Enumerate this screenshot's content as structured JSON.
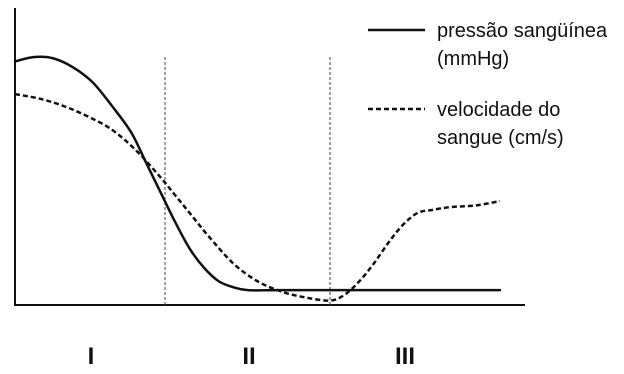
{
  "chart_data": {
    "type": "line",
    "title": "",
    "xlabel": "",
    "ylabel": "",
    "grid": false,
    "legend_position": "top-right",
    "x_range": [
      0,
      100
    ],
    "y_range": [
      0,
      100
    ],
    "regions": [
      {
        "label": "I",
        "from": 0,
        "to": 30.9
      },
      {
        "label": "II",
        "from": 30.9,
        "to": 64.8
      },
      {
        "label": "III",
        "from": 64.8,
        "to": 100
      }
    ],
    "dividers_x": [
      30.9,
      64.8
    ],
    "series": [
      {
        "name_lines": [
          "pressão sangüínea",
          "(mmHg)"
        ],
        "style": "solid",
        "color": "#111111",
        "points": [
          [
            0,
            82.0
          ],
          [
            4,
            83.5
          ],
          [
            8,
            83.0
          ],
          [
            12,
            80.0
          ],
          [
            16,
            75.0
          ],
          [
            20,
            67.0
          ],
          [
            24,
            58.0
          ],
          [
            27,
            48.0
          ],
          [
            30,
            38.0
          ],
          [
            33,
            28.0
          ],
          [
            36,
            19.0
          ],
          [
            39,
            12.5
          ],
          [
            42,
            8.0
          ],
          [
            45,
            6.0
          ],
          [
            48,
            5.0
          ],
          [
            54,
            5.0
          ],
          [
            62,
            5.0
          ],
          [
            70,
            5.0
          ],
          [
            80,
            5.0
          ],
          [
            90,
            5.0
          ],
          [
            100,
            5.0
          ]
        ]
      },
      {
        "name_lines": [
          "velocidade do",
          "sangue (cm/s)"
        ],
        "style": "dashed",
        "color": "#111111",
        "points": [
          [
            0,
            71.0
          ],
          [
            5,
            69.5
          ],
          [
            10,
            67.0
          ],
          [
            15,
            63.5
          ],
          [
            20,
            59.0
          ],
          [
            25,
            52.0
          ],
          [
            30,
            43.0
          ],
          [
            33,
            37.0
          ],
          [
            36,
            31.0
          ],
          [
            40,
            23.0
          ],
          [
            45,
            14.0
          ],
          [
            50,
            8.0
          ],
          [
            55,
            4.5
          ],
          [
            60,
            2.5
          ],
          [
            65,
            1.5
          ],
          [
            68,
            3.5
          ],
          [
            71,
            8.0
          ],
          [
            74,
            14.0
          ],
          [
            77,
            21.0
          ],
          [
            80,
            27.0
          ],
          [
            83,
            31.0
          ],
          [
            86,
            32.0
          ],
          [
            90,
            33.0
          ],
          [
            95,
            33.5
          ],
          [
            100,
            35.0
          ]
        ]
      }
    ]
  },
  "legend": {
    "pressure_line1": "pressão sangüínea",
    "pressure_line2": "(mmHg)",
    "velocity_line1": "velocidade do",
    "velocity_line2": "sangue (cm/s)"
  },
  "regions": {
    "region1": "I",
    "region2": "II",
    "region3": "III"
  }
}
